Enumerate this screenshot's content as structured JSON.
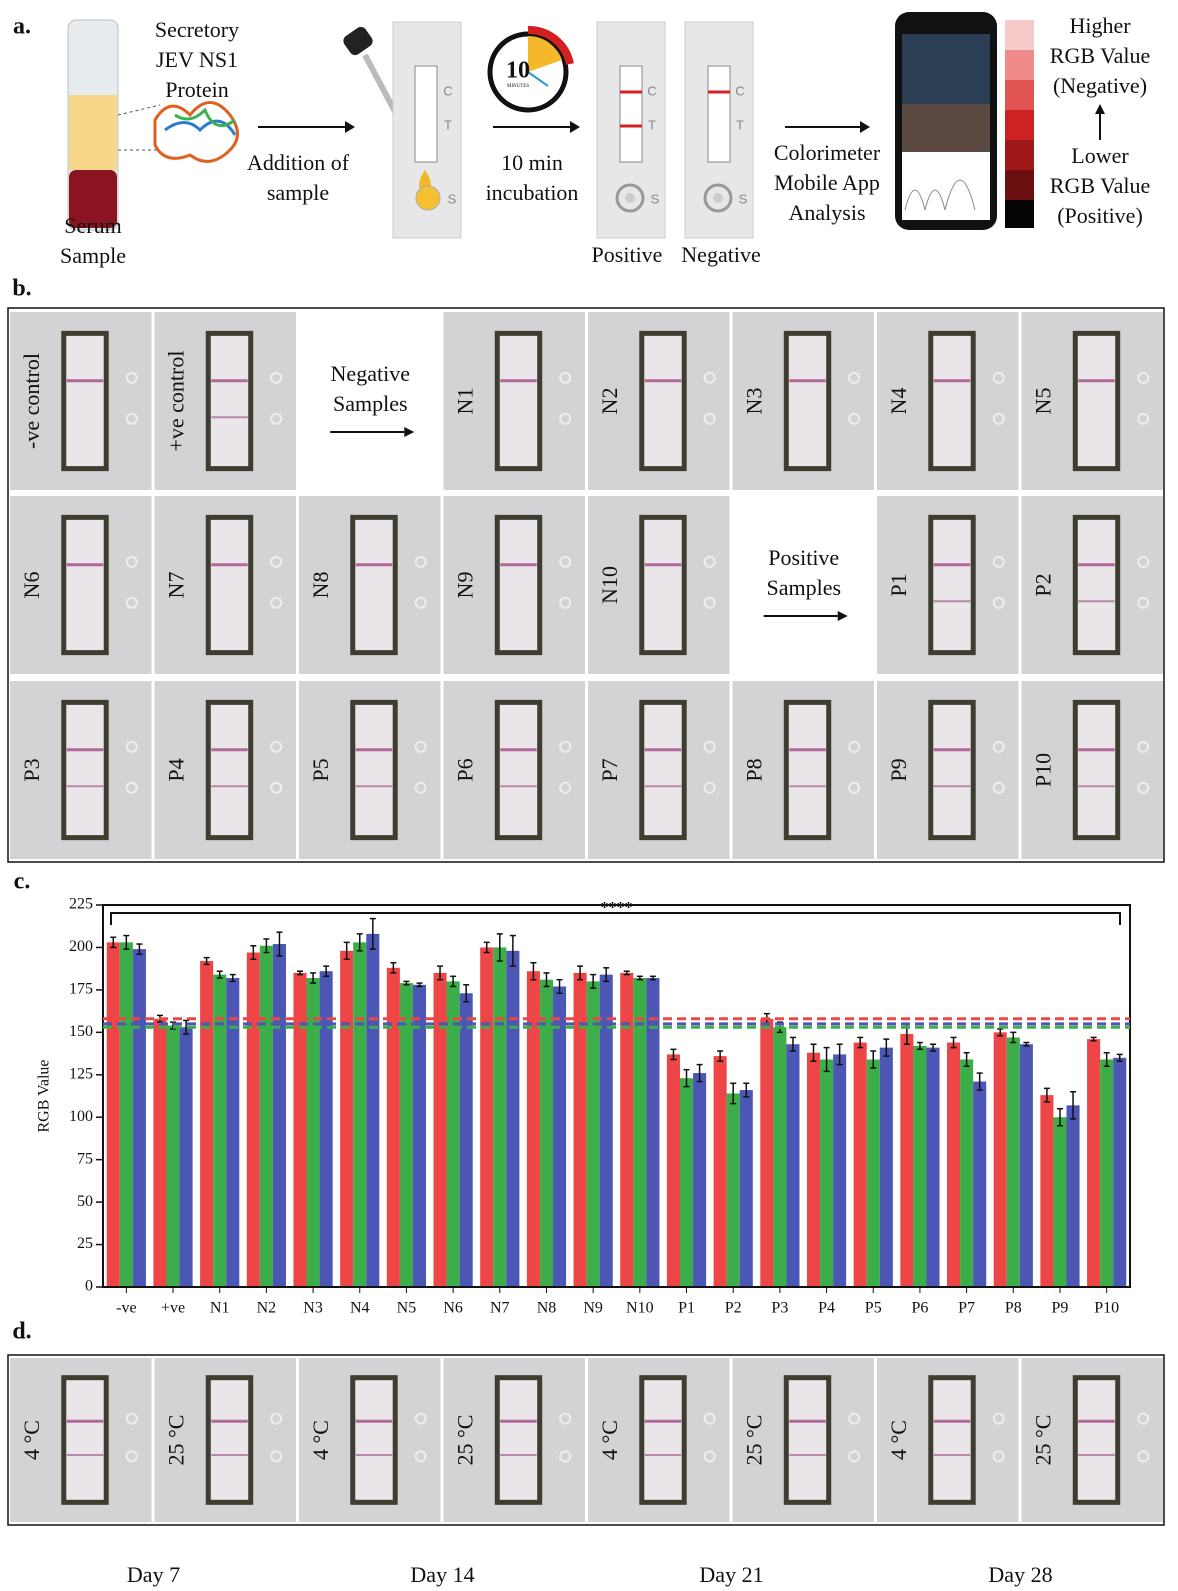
{
  "panel_a": {
    "label": "a.",
    "protein": [
      "Secretory",
      "JEV NS1",
      "Protein"
    ],
    "serum": [
      "Serum",
      "Sample"
    ],
    "addition": [
      "Addition of",
      "sample"
    ],
    "incubation": [
      "10 min",
      "incubation"
    ],
    "clock": "10",
    "clock_units": "MINUTES",
    "strip_letters": [
      "C",
      "T",
      "S"
    ],
    "positive": "Positive",
    "negative": "Negative",
    "app": [
      "Colorimeter",
      "Mobile App",
      "Analysis"
    ],
    "higher": [
      "Higher",
      "RGB Value",
      "(Negative)"
    ],
    "lower": [
      "Lower",
      "RGB Value",
      "(Positive)"
    ]
  },
  "panel_b": {
    "label": "b.",
    "strips": [
      "-ve control",
      "+ve control",
      "N1",
      "N2",
      "N3",
      "N4",
      "N5",
      "N6",
      "N7",
      "N8",
      "N9",
      "N10",
      "P1",
      "P2",
      "P3",
      "P4",
      "P5",
      "P6",
      "P7",
      "P8",
      "P9",
      "P10"
    ],
    "negative_arrow": [
      "Negative",
      "Samples"
    ],
    "positive_arrow": [
      "Positive",
      "Samples"
    ]
  },
  "chart_data": {
    "type": "bar",
    "label": "c.",
    "y_label": "RGB Value",
    "significance": "****",
    "categories": [
      "-ve",
      "+ve",
      "N1",
      "N2",
      "N3",
      "N4",
      "N5",
      "N6",
      "N7",
      "N8",
      "N9",
      "N10",
      "P1",
      "P2",
      "P3",
      "P4",
      "P5",
      "P6",
      "P7",
      "P8",
      "P9",
      "P10"
    ],
    "series": [
      {
        "color": "#ee4646",
        "values": [
          203,
          158,
          192,
          197,
          185,
          198,
          188,
          185,
          200,
          186,
          185,
          185,
          137,
          136,
          158,
          138,
          144,
          149,
          144,
          150,
          113,
          146
        ],
        "errors": [
          3,
          2,
          2,
          4,
          1,
          5,
          3,
          4,
          3,
          5,
          4,
          1,
          3,
          3,
          3,
          5,
          3,
          6,
          3,
          2,
          4,
          1
        ]
      },
      {
        "color": "#3cae49",
        "values": [
          203,
          154,
          184,
          201,
          182,
          203,
          179,
          180,
          200,
          181,
          180,
          182,
          123,
          114,
          153,
          134,
          134,
          142,
          134,
          147,
          100,
          134
        ],
        "errors": [
          4,
          2,
          2,
          4,
          3,
          5,
          1,
          3,
          8,
          4,
          4,
          1,
          5,
          6,
          3,
          7,
          5,
          2,
          4,
          3,
          5,
          4
        ]
      },
      {
        "color": "#4c57b5",
        "values": [
          199,
          153,
          182,
          202,
          186,
          208,
          178,
          173,
          198,
          177,
          184,
          182,
          126,
          116,
          143,
          137,
          141,
          141,
          121,
          143,
          107,
          135
        ],
        "errors": [
          3,
          4,
          2,
          7,
          3,
          9,
          1,
          5,
          9,
          4,
          4,
          1,
          5,
          4,
          4,
          6,
          5,
          2,
          5,
          1,
          8,
          2
        ]
      }
    ],
    "thresholds": [
      {
        "value": 158,
        "color": "#ee4646"
      },
      {
        "value": 155,
        "color": "#4c57b5"
      },
      {
        "value": 153,
        "color": "#3cae49"
      }
    ],
    "ylim": [
      0,
      225
    ],
    "yticks": [
      0,
      25,
      50,
      75,
      100,
      125,
      150,
      175,
      200,
      225
    ]
  },
  "panel_d": {
    "label": "d.",
    "temps": [
      "4 °C",
      "25 °C"
    ],
    "days": [
      "Day 7",
      "Day 14",
      "Day 21",
      "Day 28"
    ]
  }
}
